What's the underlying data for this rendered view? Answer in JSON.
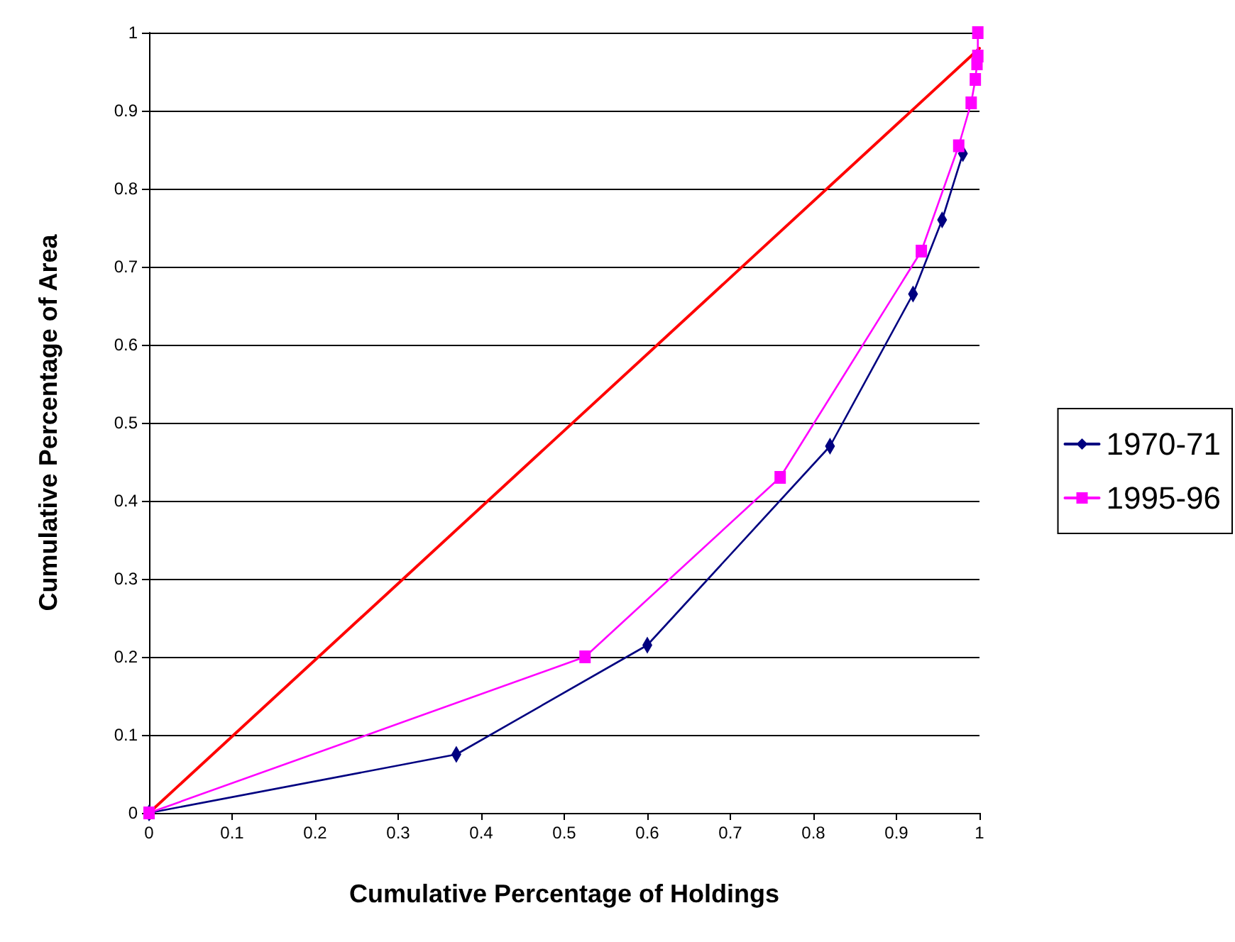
{
  "chart_data": {
    "type": "line",
    "xlabel": "Cumulative Percentage of Holdings",
    "ylabel": "Cumulative Percentage of Area",
    "xlim": [
      0,
      1
    ],
    "xticks": [
      0,
      0.1,
      0.2,
      0.3,
      0.4,
      0.5,
      0.6,
      0.7,
      0.8,
      0.9,
      1
    ],
    "ylim": [
      0,
      1
    ],
    "yticks": [
      0,
      0.1,
      0.2,
      0.3,
      0.4,
      0.5,
      0.6,
      0.7,
      0.8,
      0.9,
      1
    ],
    "grid": "y",
    "legend": "right",
    "line_style": "solid",
    "series": [
      {
        "color": "#ff0000",
        "marker": "none",
        "x": [
          0,
          1
        ],
        "values": [
          0,
          0.98
        ]
      },
      {
        "name": "1970-71",
        "color": "#000080",
        "marker": "diamond",
        "x": [
          0,
          0.37,
          0.6,
          0.82,
          0.92,
          0.955,
          0.98
        ],
        "values": [
          0,
          0.075,
          0.215,
          0.47,
          0.665,
          0.76,
          0.845
        ]
      },
      {
        "name": "1995-96",
        "color": "#ff00ff",
        "marker": "square",
        "x": [
          0,
          0.525,
          0.76,
          0.93,
          0.975,
          0.99,
          0.995,
          0.997,
          0.998,
          0.998
        ],
        "values": [
          0,
          0.2,
          0.43,
          0.72,
          0.855,
          0.91,
          0.94,
          0.96,
          0.97,
          1
        ]
      }
    ]
  }
}
